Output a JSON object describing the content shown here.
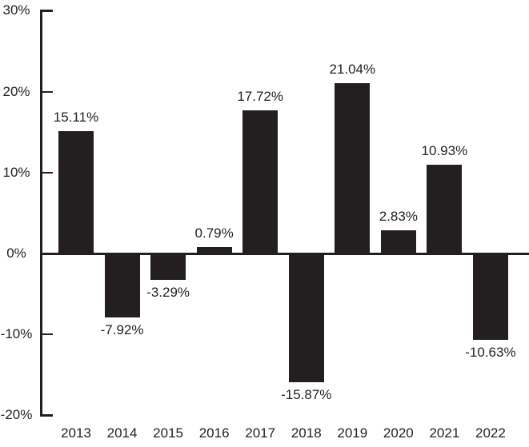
{
  "chart_data": {
    "type": "bar",
    "title": "",
    "xlabel": "",
    "ylabel": "",
    "categories": [
      "2013",
      "2014",
      "2015",
      "2016",
      "2017",
      "2018",
      "2019",
      "2020",
      "2021",
      "2022"
    ],
    "values": [
      15.11,
      -7.92,
      -3.29,
      0.79,
      17.72,
      -15.87,
      21.04,
      2.83,
      10.93,
      -10.63
    ],
    "value_labels": [
      "15.11%",
      "-7.92%",
      "-3.29%",
      "0.79%",
      "17.72%",
      "-15.87%",
      "21.04%",
      "2.83%",
      "10.93%",
      "-10.63%"
    ],
    "ylim": [
      -20,
      30
    ],
    "y_ticks": [
      30,
      20,
      10,
      0,
      -10,
      -20
    ],
    "y_tick_labels": [
      "30%",
      "20%",
      "10%",
      "0%",
      "-10%",
      "-20%"
    ],
    "grid": false,
    "legend": false,
    "bar_color": "#231f20",
    "axis_color": "#231f20",
    "text_color": "#231f20",
    "background": "#ffffff"
  }
}
